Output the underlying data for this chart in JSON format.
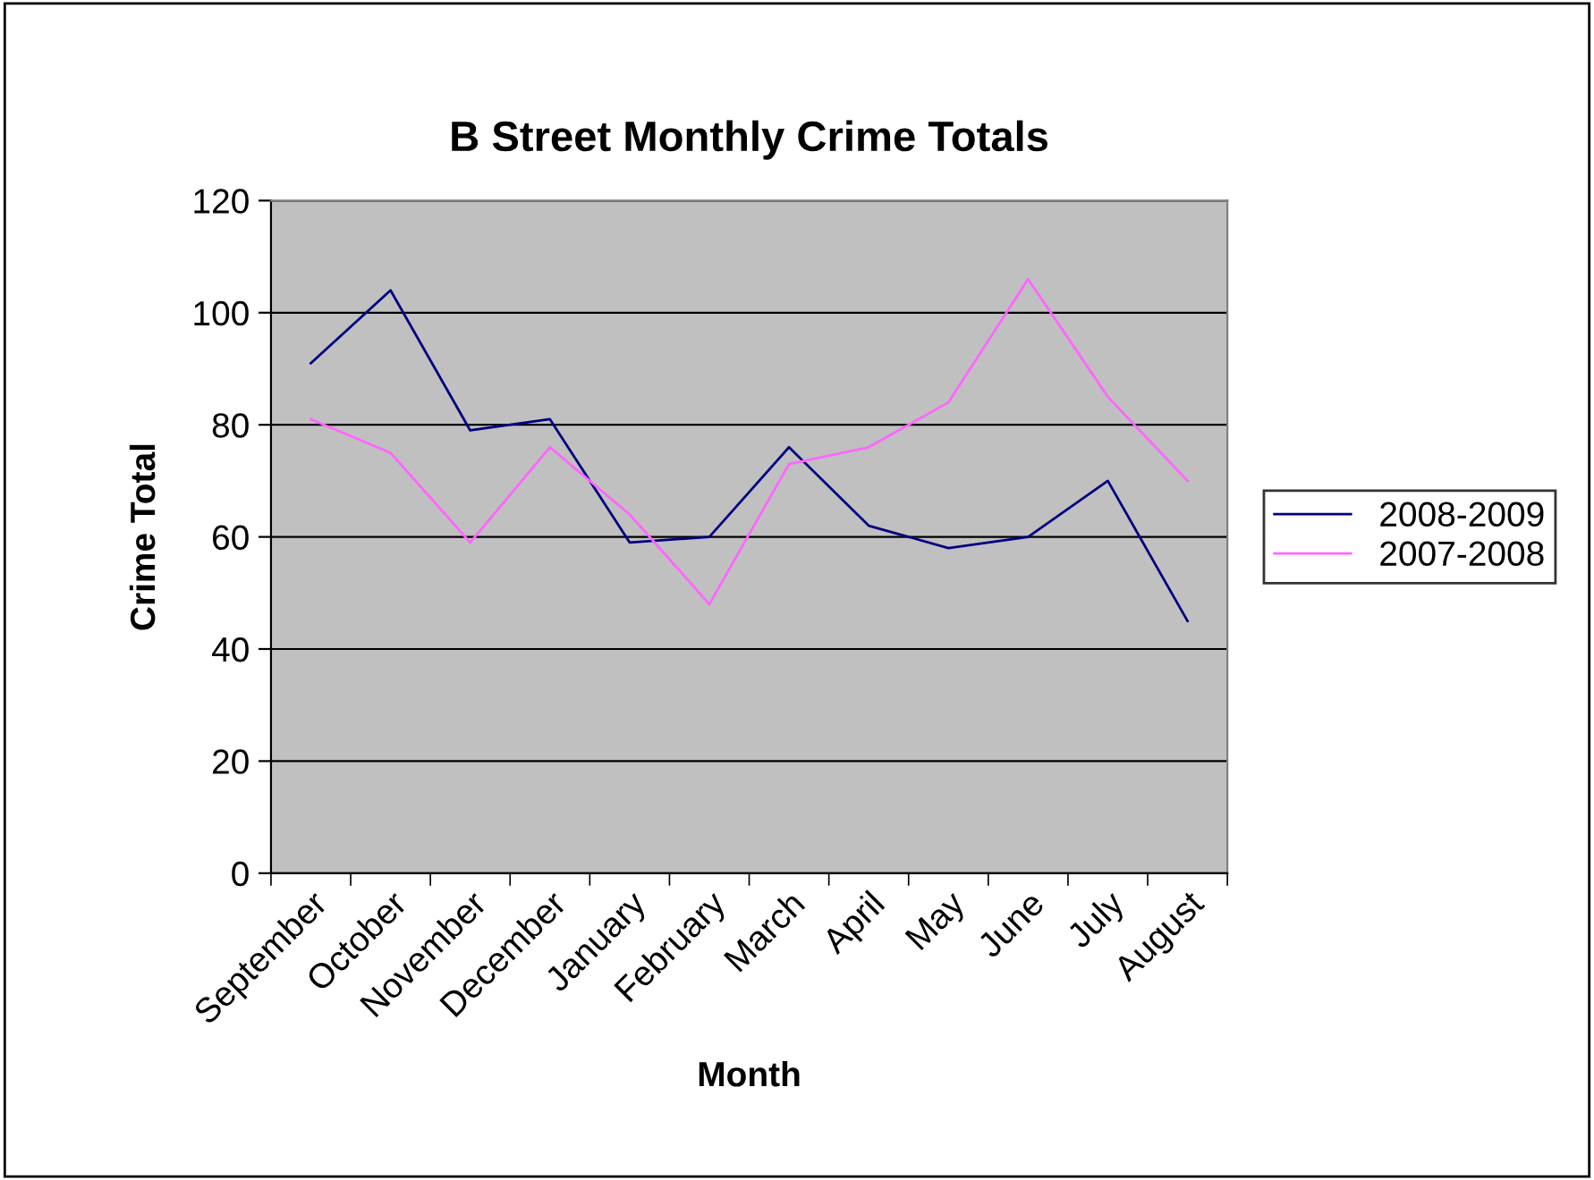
{
  "chart_data": {
    "type": "line",
    "title": "B Street Monthly Crime Totals",
    "xlabel": "Month",
    "ylabel": "Crime Total",
    "categories": [
      "September",
      "October",
      "November",
      "December",
      "January",
      "February",
      "March",
      "April",
      "May",
      "June",
      "July",
      "August"
    ],
    "series": [
      {
        "name": "2008-2009",
        "color": "#000080",
        "values": [
          91,
          104,
          79,
          81,
          59,
          60,
          76,
          62,
          58,
          60,
          70,
          45
        ]
      },
      {
        "name": "2007-2008",
        "color": "#ff66ff",
        "values": [
          81,
          75,
          59,
          76,
          64,
          48,
          73,
          76,
          84,
          106,
          85,
          70
        ]
      }
    ],
    "ylim": [
      0,
      120
    ],
    "yticks": [
      0,
      20,
      40,
      60,
      80,
      100,
      120
    ],
    "grid": "y",
    "legend": "right",
    "marker": "none",
    "line_style": "solid"
  }
}
